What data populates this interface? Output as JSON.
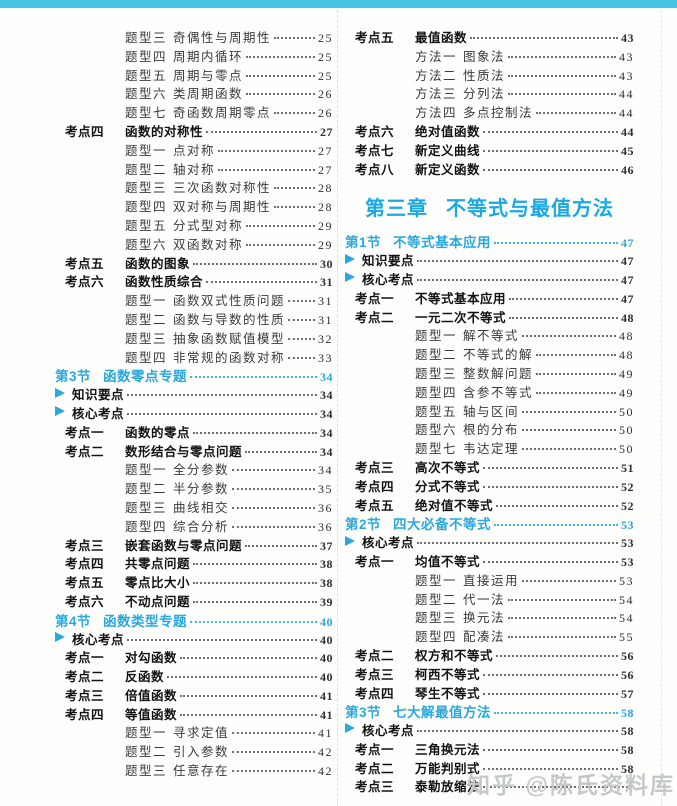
{
  "page": {
    "watermark": "知乎 @陈氏资料库",
    "colors": {
      "top_bar": "#46c6e4",
      "section_blue": "#2aa7dc",
      "chapter_blue": "#1aa9e1",
      "watermark_gray": "#c5c8c9"
    }
  },
  "toc": {
    "left_column": {
      "rows": [
        {
          "t": "topic",
          "label": "题型三",
          "title": "奇偶性与周期性",
          "page": "25"
        },
        {
          "t": "topic",
          "label": "题型四",
          "title": "周期内循环",
          "page": "25"
        },
        {
          "t": "topic",
          "label": "题型五",
          "title": "周期与零点",
          "page": "25"
        },
        {
          "t": "topic",
          "label": "题型六",
          "title": "类周期函数",
          "page": "26"
        },
        {
          "t": "topic",
          "label": "题型七",
          "title": "奇函数周期零点",
          "page": "26"
        },
        {
          "t": "keypoint",
          "label": "考点四",
          "title": "函数的对称性",
          "page": "27"
        },
        {
          "t": "topic",
          "label": "题型一",
          "title": "点对称",
          "page": "27"
        },
        {
          "t": "topic",
          "label": "题型二",
          "title": "轴对称",
          "page": "27"
        },
        {
          "t": "topic",
          "label": "题型三",
          "title": "三次函数对称性",
          "page": "28"
        },
        {
          "t": "topic",
          "label": "题型四",
          "title": "双对称与周期性",
          "page": "28"
        },
        {
          "t": "topic",
          "label": "题型五",
          "title": "分式型对称",
          "page": "29"
        },
        {
          "t": "topic",
          "label": "题型六",
          "title": "双函数对称",
          "page": "29"
        },
        {
          "t": "keypoint",
          "label": "考点五",
          "title": "函数的图象",
          "page": "30"
        },
        {
          "t": "keypoint",
          "label": "考点六",
          "title": "函数性质综合",
          "page": "31"
        },
        {
          "t": "topic",
          "label": "题型一",
          "title": "函数双式性质问题",
          "page": "31"
        },
        {
          "t": "topic",
          "label": "题型二",
          "title": "函数与导数的性质",
          "page": "31"
        },
        {
          "t": "topic",
          "label": "题型三",
          "title": "抽象函数赋值模型",
          "page": "32"
        },
        {
          "t": "topic",
          "label": "题型四",
          "title": "非常规的函数对称",
          "page": "33"
        },
        {
          "t": "section",
          "label": "第3节",
          "title": "函数零点专题",
          "page": "34"
        },
        {
          "t": "bullet",
          "label": "",
          "title": "知识要点",
          "page": "34"
        },
        {
          "t": "bullet",
          "label": "",
          "title": "核心考点",
          "page": "34"
        },
        {
          "t": "keypoint",
          "label": "考点一",
          "title": "函数的零点",
          "page": "34"
        },
        {
          "t": "keypoint",
          "label": "考点二",
          "title": "数形结合与零点问题",
          "page": "34"
        },
        {
          "t": "topic",
          "label": "题型一",
          "title": "全分参数",
          "page": "34"
        },
        {
          "t": "topic",
          "label": "题型二",
          "title": "半分参数",
          "page": "35"
        },
        {
          "t": "topic",
          "label": "题型三",
          "title": "曲线相交",
          "page": "36"
        },
        {
          "t": "topic",
          "label": "题型四",
          "title": "综合分析",
          "page": "36"
        },
        {
          "t": "keypoint",
          "label": "考点三",
          "title": "嵌套函数与零点问题",
          "page": "37"
        },
        {
          "t": "keypoint",
          "label": "考点四",
          "title": "共零点问题",
          "page": "38"
        },
        {
          "t": "keypoint",
          "label": "考点五",
          "title": "零点比大小",
          "page": "38"
        },
        {
          "t": "keypoint",
          "label": "考点六",
          "title": "不动点问题",
          "page": "39"
        },
        {
          "t": "section",
          "label": "第4节",
          "title": "函数类型专题",
          "page": "40"
        },
        {
          "t": "bullet",
          "label": "",
          "title": "核心考点",
          "page": "40"
        },
        {
          "t": "keypoint",
          "label": "考点一",
          "title": "对勾函数",
          "page": "40"
        },
        {
          "t": "keypoint",
          "label": "考点二",
          "title": "反函数",
          "page": "40"
        },
        {
          "t": "keypoint",
          "label": "考点三",
          "title": "倍值函数",
          "page": "41"
        },
        {
          "t": "keypoint",
          "label": "考点四",
          "title": "等值函数",
          "page": "41"
        },
        {
          "t": "topic",
          "label": "题型一",
          "title": "寻求定值",
          "page": "41"
        },
        {
          "t": "topic",
          "label": "题型二",
          "title": "引入参数",
          "page": "42"
        },
        {
          "t": "topic",
          "label": "题型三",
          "title": "任意存在",
          "page": "42"
        }
      ]
    },
    "right_column": {
      "rows": [
        {
          "t": "keypoint",
          "label": "考点五",
          "title": "最值函数",
          "page": "43"
        },
        {
          "t": "topic",
          "label": "方法一",
          "title": "图象法",
          "page": "43"
        },
        {
          "t": "topic",
          "label": "方法二",
          "title": "性质法",
          "page": "43"
        },
        {
          "t": "topic",
          "label": "方法三",
          "title": "分列法",
          "page": "44"
        },
        {
          "t": "topic",
          "label": "方法四",
          "title": "多点控制法",
          "page": "44"
        },
        {
          "t": "keypoint",
          "label": "考点六",
          "title": "绝对值函数",
          "page": "44"
        },
        {
          "t": "keypoint",
          "label": "考点七",
          "title": "新定义曲线",
          "page": "45"
        },
        {
          "t": "keypoint",
          "label": "考点八",
          "title": "新定义函数",
          "page": "46"
        },
        {
          "t": "chapter",
          "label": "第三章",
          "title": "不等式与最值方法",
          "page": ""
        },
        {
          "t": "section",
          "label": "第1节",
          "title": "不等式基本应用",
          "page": "47"
        },
        {
          "t": "bullet",
          "label": "",
          "title": "知识要点",
          "page": "47"
        },
        {
          "t": "bullet",
          "label": "",
          "title": "核心考点",
          "page": "47"
        },
        {
          "t": "keypoint",
          "label": "考点一",
          "title": "不等式基本应用",
          "page": "47"
        },
        {
          "t": "keypoint",
          "label": "考点二",
          "title": "一元二次不等式",
          "page": "48"
        },
        {
          "t": "topic",
          "label": "题型一",
          "title": "解不等式",
          "page": "48"
        },
        {
          "t": "topic",
          "label": "题型二",
          "title": "不等式的解",
          "page": "48"
        },
        {
          "t": "topic",
          "label": "题型三",
          "title": "整数解问题",
          "page": "49"
        },
        {
          "t": "topic",
          "label": "题型四",
          "title": "含参不等式",
          "page": "49"
        },
        {
          "t": "topic",
          "label": "题型五",
          "title": "轴与区间",
          "page": "50"
        },
        {
          "t": "topic",
          "label": "题型六",
          "title": "根的分布",
          "page": "50"
        },
        {
          "t": "topic",
          "label": "题型七",
          "title": "韦达定理",
          "page": "50"
        },
        {
          "t": "keypoint",
          "label": "考点三",
          "title": "高次不等式",
          "page": "51"
        },
        {
          "t": "keypoint",
          "label": "考点四",
          "title": "分式不等式",
          "page": "52"
        },
        {
          "t": "keypoint",
          "label": "考点五",
          "title": "绝对值不等式",
          "page": "52"
        },
        {
          "t": "section",
          "label": "第2节",
          "title": "四大必备不等式",
          "page": "53"
        },
        {
          "t": "bullet",
          "label": "",
          "title": "核心考点",
          "page": "53"
        },
        {
          "t": "keypoint",
          "label": "考点一",
          "title": "均值不等式",
          "page": "53"
        },
        {
          "t": "topic",
          "label": "题型一",
          "title": "直接运用",
          "page": "53"
        },
        {
          "t": "topic",
          "label": "题型二",
          "title": "代一法",
          "page": "54"
        },
        {
          "t": "topic",
          "label": "题型三",
          "title": "换元法",
          "page": "54"
        },
        {
          "t": "topic",
          "label": "题型四",
          "title": "配凑法",
          "page": "55"
        },
        {
          "t": "keypoint",
          "label": "考点二",
          "title": "权方和不等式",
          "page": "56"
        },
        {
          "t": "keypoint",
          "label": "考点三",
          "title": "柯西不等式",
          "page": "56"
        },
        {
          "t": "keypoint",
          "label": "考点四",
          "title": "琴生不等式",
          "page": "57"
        },
        {
          "t": "section",
          "label": "第3节",
          "title": "七大解最值方法",
          "page": "58"
        },
        {
          "t": "bullet",
          "label": "",
          "title": "核心考点",
          "page": "58"
        },
        {
          "t": "keypoint",
          "label": "考点一",
          "title": "三角换元法",
          "page": "58"
        },
        {
          "t": "keypoint",
          "label": "考点二",
          "title": "万能判别式",
          "page": "58"
        },
        {
          "t": "keypoint",
          "label": "考点三",
          "title": "泰勒放缩法",
          "page": ""
        }
      ]
    }
  }
}
